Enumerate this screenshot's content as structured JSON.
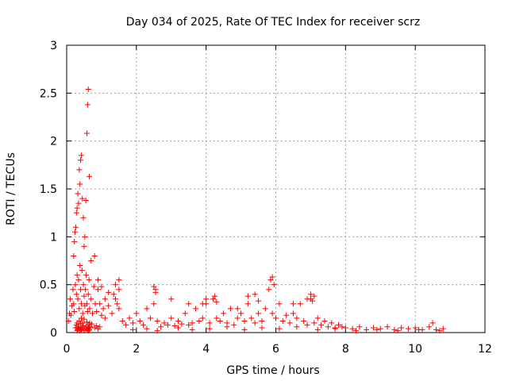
{
  "chart_data": {
    "type": "scatter",
    "title": "Day 034 of 2025, Rate Of TEC Index for receiver scrz",
    "xlabel": "GPS time / hours",
    "ylabel": "ROTI / TECUs",
    "xlim": [
      0,
      12
    ],
    "ylim": [
      0,
      3
    ],
    "xticks": [
      "0",
      "2",
      "4",
      "6",
      "8",
      "10",
      "12"
    ],
    "yticks": [
      "0",
      "0.5",
      "1",
      "1.5",
      "2",
      "2.5",
      "3"
    ],
    "grid": true,
    "legend": "none",
    "marker": "+",
    "color": "#ff0000",
    "series": [
      {
        "x": [
          0.05,
          0.08,
          0.1,
          0.12,
          0.15,
          0.18,
          0.2,
          0.22,
          0.25,
          0.28,
          0.3,
          0.32,
          0.34,
          0.36,
          0.38,
          0.4,
          0.42,
          0.44,
          0.46,
          0.48,
          0.5,
          0.52,
          0.54,
          0.56,
          0.58,
          0.6,
          0.62,
          0.64,
          0.66,
          0.7,
          0.74,
          0.78,
          0.82,
          0.86,
          0.9,
          0.95,
          1.0,
          1.05,
          1.1,
          1.2,
          1.3,
          1.4,
          1.5,
          1.6,
          1.7,
          0.2,
          0.22,
          0.24,
          0.26,
          0.28,
          0.3,
          0.32,
          0.34,
          0.36,
          0.38,
          0.4,
          0.42,
          0.45,
          0.48,
          0.5,
          0.52,
          0.55,
          0.58,
          0.6,
          0.62,
          0.65,
          0.7,
          0.8,
          0.9,
          1.0,
          1.1,
          1.2,
          1.4,
          1.5,
          0.25,
          0.28,
          0.3,
          0.32,
          0.34,
          0.36,
          0.38,
          0.4,
          0.42,
          0.44,
          0.46,
          0.48,
          0.5,
          0.55,
          0.58,
          0.6,
          0.62,
          0.64,
          0.66,
          0.68,
          0.72,
          0.8,
          0.85,
          0.9,
          0.95,
          1.35,
          1.45,
          1.5,
          0.3,
          0.32,
          0.35,
          0.38,
          0.4,
          0.42,
          0.45,
          0.5,
          0.55,
          0.6,
          0.62,
          0.64,
          0.65,
          1.8,
          1.9,
          2.0,
          2.1,
          2.2,
          2.3,
          2.4,
          2.5,
          2.55,
          2.6,
          2.7,
          2.8,
          2.9,
          3.0,
          3.1,
          3.2,
          3.3,
          3.4,
          3.5,
          3.6,
          3.7,
          3.8,
          3.9,
          4.0,
          4.1,
          4.2,
          4.3,
          4.4,
          4.5,
          4.6,
          4.7,
          4.8,
          4.9,
          5.0,
          5.1,
          5.2,
          5.3,
          5.4,
          5.5,
          5.6,
          5.7,
          5.8,
          5.9,
          6.0,
          6.1,
          6.2,
          6.3,
          6.4,
          6.5,
          6.6,
          6.7,
          6.8,
          6.9,
          7.0,
          7.1,
          7.2,
          7.3,
          7.4,
          7.5,
          7.6,
          7.7,
          7.8,
          7.9,
          8.0,
          8.2,
          8.4,
          8.6,
          8.8,
          9.0,
          9.2,
          9.4,
          9.6,
          9.8,
          10.0,
          10.2,
          10.4,
          10.6,
          10.8,
          2.5,
          2.55,
          3.0,
          3.5,
          3.9,
          4.0,
          4.25,
          4.3,
          4.9,
          5.2,
          5.4,
          5.5,
          5.85,
          5.9,
          5.95,
          6.5,
          6.9,
          7.0,
          7.05,
          7.1,
          10.5,
          1.9,
          2.3,
          2.6,
          3.2,
          3.6,
          4.1,
          4.6,
          5.1,
          5.6,
          6.1,
          6.6,
          7.2,
          7.7,
          8.3,
          8.9,
          9.5,
          10.1,
          10.7
        ],
        "y": [
          0.12,
          0.2,
          0.35,
          0.18,
          0.28,
          0.45,
          0.3,
          0.22,
          0.5,
          0.4,
          0.6,
          0.35,
          0.55,
          0.25,
          0.7,
          0.45,
          0.3,
          0.65,
          0.2,
          0.5,
          0.38,
          0.28,
          0.45,
          0.6,
          0.3,
          0.22,
          0.4,
          0.55,
          0.25,
          0.35,
          0.2,
          0.48,
          0.3,
          0.22,
          0.45,
          0.3,
          0.18,
          0.25,
          0.15,
          0.28,
          0.2,
          0.35,
          0.25,
          0.12,
          0.08,
          0.8,
          0.95,
          1.05,
          1.1,
          1.25,
          1.3,
          1.45,
          1.35,
          1.7,
          1.55,
          1.8,
          1.85,
          1.4,
          1.2,
          0.9,
          1.0,
          1.38,
          2.08,
          2.38,
          2.54,
          1.63,
          0.75,
          0.8,
          0.55,
          0.48,
          0.35,
          0.42,
          0.5,
          0.55,
          0.05,
          0.08,
          0.1,
          0.04,
          0.06,
          0.12,
          0.03,
          0.09,
          0.15,
          0.05,
          0.1,
          0.07,
          0.14,
          0.06,
          0.11,
          0.04,
          0.08,
          0.05,
          0.1,
          0.06,
          0.09,
          0.05,
          0.07,
          0.04,
          0.06,
          0.4,
          0.3,
          0.45,
          0.02,
          0.03,
          0.05,
          0.02,
          0.04,
          0.03,
          0.05,
          0.02,
          0.04,
          0.03,
          0.02,
          0.05,
          0.03,
          0.15,
          0.1,
          0.2,
          0.12,
          0.08,
          0.25,
          0.15,
          0.3,
          0.45,
          0.12,
          0.06,
          0.1,
          0.08,
          0.15,
          0.07,
          0.12,
          0.09,
          0.2,
          0.08,
          0.1,
          0.25,
          0.12,
          0.15,
          0.3,
          0.1,
          0.35,
          0.15,
          0.12,
          0.2,
          0.1,
          0.25,
          0.08,
          0.15,
          0.2,
          0.12,
          0.3,
          0.15,
          0.1,
          0.2,
          0.12,
          0.25,
          0.45,
          0.2,
          0.15,
          0.3,
          0.12,
          0.18,
          0.1,
          0.2,
          0.15,
          0.3,
          0.12,
          0.08,
          0.35,
          0.1,
          0.15,
          0.08,
          0.12,
          0.06,
          0.1,
          0.05,
          0.08,
          0.06,
          0.05,
          0.04,
          0.06,
          0.03,
          0.05,
          0.04,
          0.06,
          0.03,
          0.05,
          0.04,
          0.05,
          0.03,
          0.06,
          0.03,
          0.04,
          0.48,
          0.42,
          0.35,
          0.3,
          0.3,
          0.35,
          0.38,
          0.32,
          0.25,
          0.38,
          0.4,
          0.33,
          0.55,
          0.58,
          0.5,
          0.3,
          0.35,
          0.4,
          0.33,
          0.38,
          0.1,
          0.03,
          0.04,
          0.02,
          0.05,
          0.03,
          0.04,
          0.06,
          0.03,
          0.05,
          0.04,
          0.06,
          0.03,
          0.04,
          0.02,
          0.03,
          0.02,
          0.03,
          0.02
        ]
      }
    ]
  }
}
